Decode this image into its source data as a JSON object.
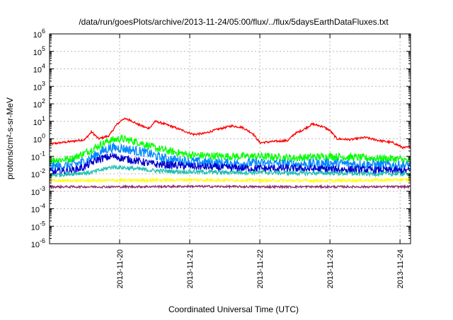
{
  "chart_data": {
    "type": "line",
    "title": "/data/run/goesPlots/archive/2013-11-24/05:00/flux/../flux/5daysEarthDataFluxes.txt",
    "xlabel": "Coordinated Universal Time (UTC)",
    "ylabel": "protons/cm²-s-sr-MeV",
    "yscale": "log",
    "ylim": [
      1e-06,
      1000000.0
    ],
    "xlim": [
      0,
      5.15
    ],
    "x_unit_note_hidden": true,
    "xticks": [
      {
        "pos": 1,
        "label": "2013-11-20"
      },
      {
        "pos": 2,
        "label": "2013-11-21"
      },
      {
        "pos": 3,
        "label": "2013-11-22"
      },
      {
        "pos": 4,
        "label": "2013-11-23"
      },
      {
        "pos": 5,
        "label": "2013-11-24"
      }
    ],
    "yticks": [
      {
        "exp": 6,
        "label": "10",
        "sup": "6"
      },
      {
        "exp": 5,
        "label": "10",
        "sup": "5"
      },
      {
        "exp": 4,
        "label": "10",
        "sup": "4"
      },
      {
        "exp": 3,
        "label": "10",
        "sup": "3"
      },
      {
        "exp": 2,
        "label": "10",
        "sup": "2"
      },
      {
        "exp": 1,
        "label": "10",
        "sup": "1"
      },
      {
        "exp": 0,
        "label": "10",
        "sup": "0"
      },
      {
        "exp": -1,
        "label": "10",
        "sup": "-1"
      },
      {
        "exp": -2,
        "label": "10",
        "sup": "-2"
      },
      {
        "exp": -3,
        "label": "10",
        "sup": "-3"
      },
      {
        "exp": -4,
        "label": "10",
        "sup": "-4"
      },
      {
        "exp": -5,
        "label": "10",
        "sup": "-5"
      },
      {
        "exp": -6,
        "label": "10",
        "sup": "-6"
      }
    ],
    "grid": true,
    "series": [
      {
        "color": "#ff0000",
        "noise": 0.06,
        "x": [
          0,
          0.3,
          0.5,
          0.6,
          0.7,
          0.85,
          0.95,
          1.05,
          1.15,
          1.25,
          1.4,
          1.45,
          1.5,
          1.6,
          1.75,
          1.9,
          2.05,
          2.2,
          2.4,
          2.6,
          2.75,
          2.9,
          3.0,
          3.2,
          3.4,
          3.5,
          3.6,
          3.75,
          3.9,
          4.0,
          4.1,
          4.3,
          4.5,
          4.7,
          4.9,
          5.05,
          5.15
        ],
        "y": [
          0.5,
          0.7,
          0.9,
          2.5,
          1.0,
          1.5,
          6,
          14,
          12,
          7,
          4,
          5,
          10,
          8,
          5,
          3,
          1.8,
          2.0,
          3.5,
          5.5,
          4.5,
          2.0,
          0.6,
          0.7,
          0.8,
          2.0,
          3.0,
          7,
          5,
          3,
          1.0,
          0.9,
          1.2,
          0.8,
          0.6,
          0.3,
          0.35
        ]
      },
      {
        "color": "#00ff00",
        "noise": 0.22,
        "x": [
          0,
          0.3,
          0.5,
          0.7,
          0.85,
          1.0,
          1.1,
          1.3,
          1.5,
          1.7,
          2.0,
          2.5,
          3.0,
          3.5,
          4.0,
          4.5,
          5.0,
          5.15
        ],
        "y": [
          0.06,
          0.07,
          0.15,
          0.4,
          0.8,
          1.0,
          0.9,
          0.6,
          0.3,
          0.2,
          0.12,
          0.1,
          0.1,
          0.08,
          0.1,
          0.08,
          0.07,
          0.05
        ]
      },
      {
        "color": "#0088ff",
        "noise": 0.28,
        "x": [
          0,
          0.3,
          0.5,
          0.7,
          0.85,
          1.0,
          1.2,
          1.4,
          1.6,
          1.8,
          2.0,
          2.5,
          3.0,
          3.5,
          4.0,
          4.5,
          5.0,
          5.15
        ],
        "y": [
          0.025,
          0.03,
          0.05,
          0.15,
          0.3,
          0.3,
          0.22,
          0.15,
          0.08,
          0.06,
          0.05,
          0.04,
          0.04,
          0.035,
          0.04,
          0.035,
          0.03,
          0.03
        ]
      },
      {
        "color": "#0000cc",
        "noise": 0.22,
        "x": [
          0,
          0.3,
          0.5,
          0.7,
          0.9,
          1.1,
          1.3,
          1.5,
          1.8,
          2.2,
          2.6,
          3.0,
          3.5,
          4.0,
          4.5,
          5.0,
          5.15
        ],
        "y": [
          0.012,
          0.015,
          0.025,
          0.07,
          0.1,
          0.07,
          0.05,
          0.035,
          0.03,
          0.025,
          0.022,
          0.02,
          0.02,
          0.018,
          0.017,
          0.015,
          0.015
        ]
      },
      {
        "color": "#20c0b0",
        "noise": 0.12,
        "x": [
          0,
          0.3,
          0.6,
          0.9,
          1.2,
          1.5,
          2.0,
          2.5,
          3.0,
          3.5,
          4.0,
          4.5,
          5.0,
          5.15
        ],
        "y": [
          0.008,
          0.01,
          0.012,
          0.025,
          0.02,
          0.015,
          0.013,
          0.012,
          0.012,
          0.011,
          0.011,
          0.01,
          0.01,
          0.01
        ]
      },
      {
        "color": "#ffff00",
        "noise": 0.08,
        "x": [
          0,
          1.0,
          2.0,
          3.0,
          4.0,
          5.0,
          5.15
        ],
        "y": [
          0.004,
          0.0042,
          0.0045,
          0.0042,
          0.004,
          0.0045,
          0.0045
        ]
      },
      {
        "color": "#8b2a6b",
        "noise": 0.06,
        "x": [
          0,
          1.0,
          2.0,
          3.0,
          4.0,
          5.0,
          5.15
        ],
        "y": [
          0.0018,
          0.0018,
          0.0019,
          0.0018,
          0.0018,
          0.0018,
          0.0018
        ]
      }
    ]
  }
}
